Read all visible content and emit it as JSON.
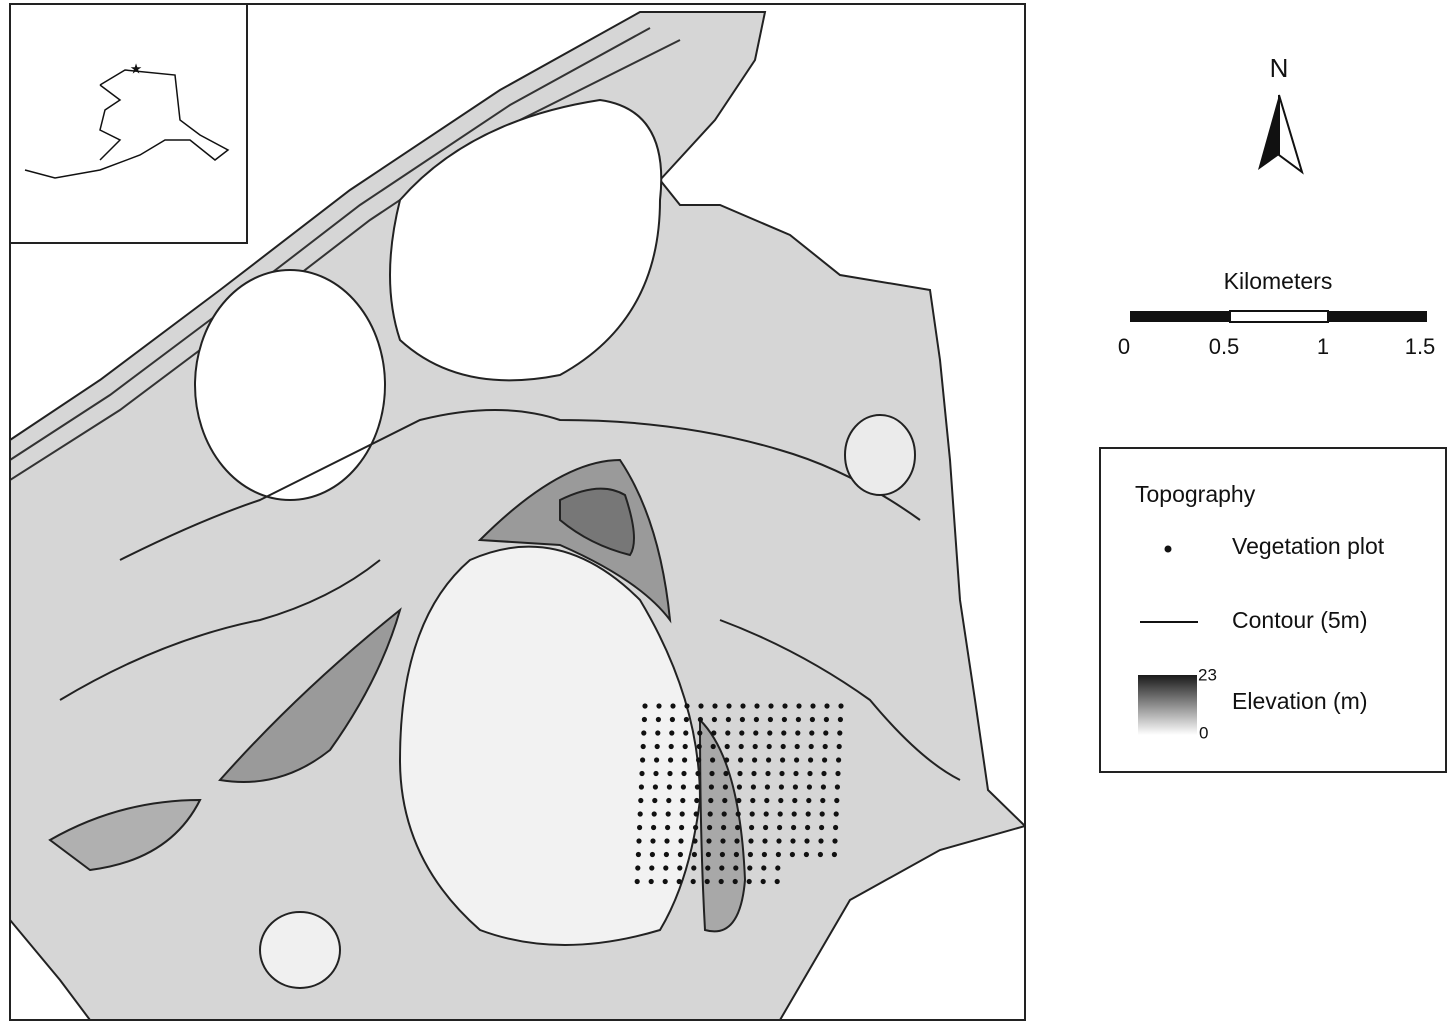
{
  "north_arrow": {
    "label": "N"
  },
  "scale_bar": {
    "title": "Kilometers",
    "labels": [
      "0",
      "0.5",
      "1",
      "1.5"
    ]
  },
  "legend": {
    "title": "Topography",
    "items": [
      {
        "label": "Vegetation plot"
      },
      {
        "label": "Contour (5m)"
      },
      {
        "label": "Elevation (m)"
      }
    ],
    "ramp_labels": [
      "23",
      "0"
    ]
  }
}
